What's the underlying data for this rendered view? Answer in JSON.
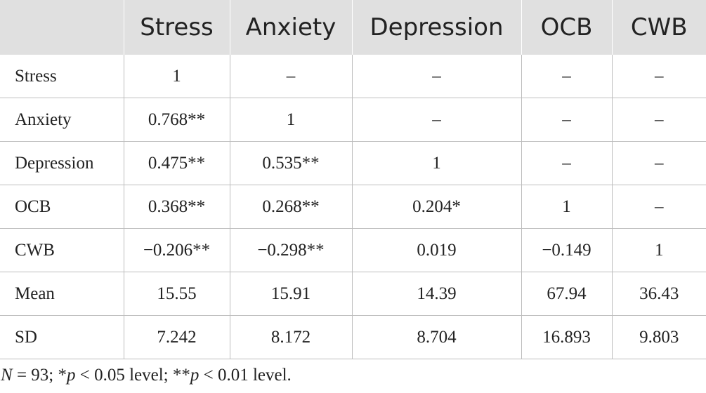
{
  "table": {
    "columns": [
      "",
      "Stress",
      "Anxiety",
      "Depression",
      "OCB",
      "CWB"
    ],
    "rows": [
      {
        "label": "Stress",
        "cells": [
          "1",
          "–",
          "–",
          "–",
          "–"
        ]
      },
      {
        "label": "Anxiety",
        "cells": [
          "0.768**",
          "1",
          "–",
          "–",
          "–"
        ]
      },
      {
        "label": "Depression",
        "cells": [
          "0.475**",
          "0.535**",
          "1",
          "–",
          "–"
        ]
      },
      {
        "label": "OCB",
        "cells": [
          "0.368**",
          "0.268**",
          "0.204*",
          "1",
          "–"
        ]
      },
      {
        "label": "CWB",
        "cells": [
          "−0.206**",
          "−0.298**",
          "0.019",
          "−0.149",
          "1"
        ]
      },
      {
        "label": "Mean",
        "cells": [
          "15.55",
          "15.91",
          "14.39",
          "67.94",
          "36.43"
        ]
      },
      {
        "label": "SD",
        "cells": [
          "7.242",
          "8.172",
          "8.704",
          "16.893",
          "9.803"
        ]
      }
    ]
  },
  "footnote": {
    "n_symbol": "N",
    "n_value": " = 93; *",
    "p1_symbol": "p",
    "p1_text": " < 0.05 level; **",
    "p2_symbol": "p",
    "p2_text": " < 0.01 level."
  }
}
